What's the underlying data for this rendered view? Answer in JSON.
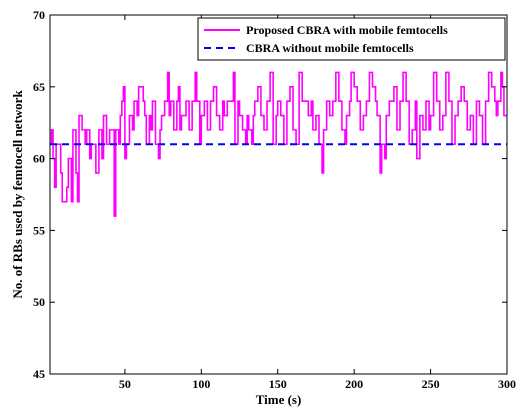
{
  "chart_data": {
    "type": "line",
    "title": "",
    "xlabel": "Time (s)",
    "ylabel": "No. of RBs used by femtocell network",
    "xlim": [
      1,
      300
    ],
    "ylim": [
      45,
      70
    ],
    "x_ticks": [
      50,
      100,
      150,
      200,
      250,
      300
    ],
    "x_tick_labels": [
      "50",
      "100",
      "150",
      "200",
      "250",
      "300"
    ],
    "y_ticks": [
      45,
      50,
      55,
      60,
      65,
      70
    ],
    "y_tick_labels": [
      "45",
      "50",
      "55",
      "60",
      "65",
      "70"
    ],
    "grid": false,
    "legend_position": "top-right",
    "series": [
      {
        "name": "Proposed CBRA with mobile femtocells",
        "color": "#ff00ff",
        "line_style": "solid",
        "step": true,
        "points": [
          [
            1,
            61
          ],
          [
            2,
            62
          ],
          [
            3,
            60
          ],
          [
            4,
            58
          ],
          [
            5,
            61
          ],
          [
            7,
            61
          ],
          [
            8,
            59
          ],
          [
            9,
            57
          ],
          [
            12,
            58
          ],
          [
            13,
            60
          ],
          [
            15,
            57
          ],
          [
            16,
            62
          ],
          [
            18,
            59
          ],
          [
            19,
            57
          ],
          [
            20,
            63
          ],
          [
            22,
            62
          ],
          [
            24,
            61
          ],
          [
            25,
            62
          ],
          [
            27,
            60
          ],
          [
            28,
            61
          ],
          [
            31,
            59
          ],
          [
            33,
            62
          ],
          [
            35,
            60
          ],
          [
            36,
            63
          ],
          [
            38,
            61
          ],
          [
            40,
            62
          ],
          [
            42,
            62
          ],
          [
            43,
            56
          ],
          [
            44,
            62
          ],
          [
            46,
            61
          ],
          [
            47,
            63
          ],
          [
            48,
            64
          ],
          [
            49,
            65
          ],
          [
            50,
            60
          ],
          [
            51,
            61
          ],
          [
            53,
            63
          ],
          [
            55,
            62
          ],
          [
            56,
            64
          ],
          [
            58,
            63
          ],
          [
            59,
            65
          ],
          [
            62,
            64
          ],
          [
            63,
            63
          ],
          [
            64,
            61
          ],
          [
            66,
            63
          ],
          [
            67,
            62
          ],
          [
            68,
            64
          ],
          [
            70,
            61
          ],
          [
            72,
            60
          ],
          [
            73,
            62
          ],
          [
            74,
            63
          ],
          [
            76,
            64
          ],
          [
            78,
            66
          ],
          [
            79,
            63
          ],
          [
            80,
            64
          ],
          [
            82,
            62
          ],
          [
            84,
            64
          ],
          [
            85,
            65
          ],
          [
            86,
            62
          ],
          [
            87,
            63
          ],
          [
            90,
            64
          ],
          [
            92,
            62
          ],
          [
            94,
            64
          ],
          [
            96,
            66
          ],
          [
            97,
            64
          ],
          [
            99,
            61
          ],
          [
            100,
            63
          ],
          [
            102,
            64
          ],
          [
            104,
            62
          ],
          [
            106,
            64
          ],
          [
            108,
            65
          ],
          [
            110,
            63
          ],
          [
            112,
            62
          ],
          [
            114,
            64
          ],
          [
            115,
            63
          ],
          [
            117,
            64
          ],
          [
            119,
            64
          ],
          [
            121,
            66
          ],
          [
            122,
            61
          ],
          [
            124,
            64
          ],
          [
            125,
            63
          ],
          [
            127,
            62
          ],
          [
            129,
            61
          ],
          [
            130,
            63
          ],
          [
            131,
            62
          ],
          [
            133,
            61
          ],
          [
            134,
            63
          ],
          [
            135,
            64
          ],
          [
            137,
            65
          ],
          [
            139,
            63
          ],
          [
            141,
            62
          ],
          [
            143,
            64
          ],
          [
            145,
            66
          ],
          [
            147,
            61
          ],
          [
            149,
            63
          ],
          [
            150,
            64
          ],
          [
            152,
            63
          ],
          [
            154,
            61
          ],
          [
            156,
            64
          ],
          [
            158,
            65
          ],
          [
            160,
            62
          ],
          [
            162,
            61
          ],
          [
            164,
            66
          ],
          [
            166,
            64
          ],
          [
            168,
            64
          ],
          [
            170,
            63
          ],
          [
            172,
            64
          ],
          [
            173,
            62
          ],
          [
            175,
            63
          ],
          [
            177,
            61
          ],
          [
            179,
            59
          ],
          [
            180,
            62
          ],
          [
            182,
            64
          ],
          [
            184,
            63
          ],
          [
            186,
            64
          ],
          [
            188,
            66
          ],
          [
            190,
            64
          ],
          [
            192,
            62
          ],
          [
            194,
            61
          ],
          [
            195,
            63
          ],
          [
            197,
            64
          ],
          [
            198,
            66
          ],
          [
            200,
            65
          ],
          [
            202,
            64
          ],
          [
            204,
            62
          ],
          [
            206,
            63
          ],
          [
            208,
            64
          ],
          [
            210,
            66
          ],
          [
            212,
            65
          ],
          [
            214,
            64
          ],
          [
            215,
            63
          ],
          [
            217,
            59
          ],
          [
            218,
            61
          ],
          [
            220,
            60
          ],
          [
            221,
            63
          ],
          [
            223,
            64
          ],
          [
            225,
            64
          ],
          [
            226,
            65
          ],
          [
            228,
            62
          ],
          [
            230,
            64
          ],
          [
            232,
            66
          ],
          [
            234,
            64
          ],
          [
            236,
            61
          ],
          [
            238,
            62
          ],
          [
            240,
            64
          ],
          [
            241,
            60
          ],
          [
            243,
            63
          ],
          [
            245,
            62
          ],
          [
            247,
            64
          ],
          [
            249,
            62
          ],
          [
            250,
            63
          ],
          [
            252,
            66
          ],
          [
            254,
            64
          ],
          [
            256,
            62
          ],
          [
            258,
            63
          ],
          [
            260,
            66
          ],
          [
            262,
            64
          ],
          [
            264,
            61
          ],
          [
            266,
            63
          ],
          [
            268,
            64
          ],
          [
            270,
            65
          ],
          [
            272,
            64
          ],
          [
            274,
            62
          ],
          [
            276,
            63
          ],
          [
            278,
            61
          ],
          [
            280,
            64
          ],
          [
            282,
            63
          ],
          [
            284,
            61
          ],
          [
            286,
            64
          ],
          [
            288,
            66
          ],
          [
            290,
            65
          ],
          [
            292,
            64
          ],
          [
            293,
            63
          ],
          [
            294,
            64
          ],
          [
            296,
            66
          ],
          [
            297,
            65
          ],
          [
            298,
            63
          ],
          [
            300,
            63
          ]
        ]
      },
      {
        "name": "CBRA without mobile femtocells",
        "color": "#0000ff",
        "line_style": "dashed",
        "points": [
          [
            1,
            61
          ],
          [
            300,
            61
          ]
        ]
      }
    ]
  }
}
